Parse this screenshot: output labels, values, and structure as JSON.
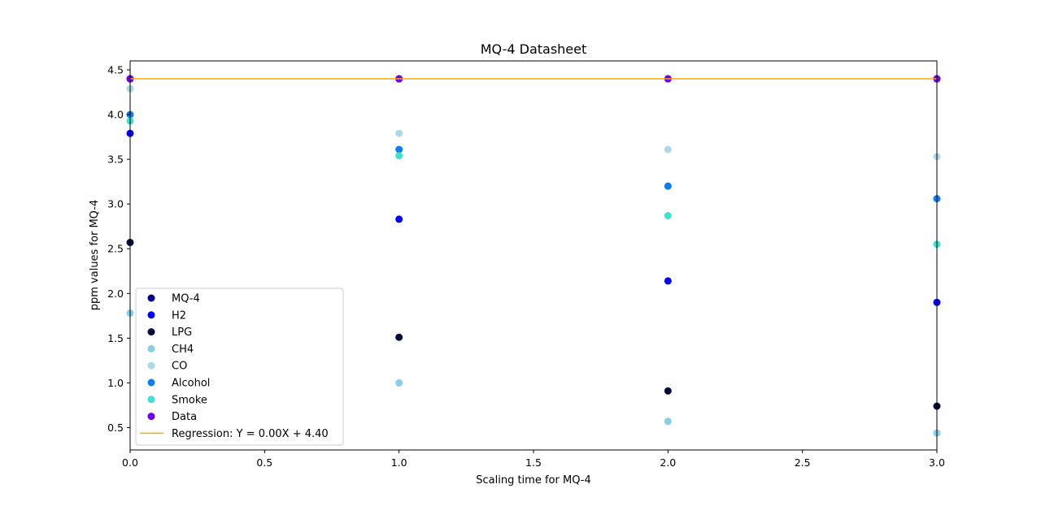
{
  "chart_data": {
    "type": "scatter",
    "title": "MQ-4 Datasheet",
    "xlabel": "Scaling time for MQ-4",
    "ylabel": "ppm values for MQ-4",
    "xlim": [
      0.0,
      3.0
    ],
    "ylim": [
      0.25,
      4.6
    ],
    "xticks": [
      "0.0",
      "0.5",
      "1.0",
      "1.5",
      "2.0",
      "2.5",
      "3.0"
    ],
    "yticks": [
      "0.5",
      "1.0",
      "1.5",
      "2.0",
      "2.5",
      "3.0",
      "3.5",
      "4.0",
      "4.5"
    ],
    "grid": false,
    "legend_position": "lower-left",
    "x": [
      0,
      1,
      2,
      3
    ],
    "series": [
      {
        "name": "MQ-4",
        "color": "#00008b",
        "values": [
          4.4,
          4.4,
          4.4,
          4.4
        ]
      },
      {
        "name": "H2",
        "color": "#0000ff",
        "values": [
          3.79,
          2.83,
          2.14,
          1.9
        ]
      },
      {
        "name": "LPG",
        "color": "#000c3a",
        "values": [
          2.57,
          1.51,
          0.91,
          0.74
        ]
      },
      {
        "name": "CH4",
        "color": "#87ceeb",
        "values": [
          1.78,
          1.0,
          0.57,
          0.44
        ]
      },
      {
        "name": "CO",
        "color": "#add8e6",
        "values": [
          4.29,
          3.79,
          3.61,
          3.53
        ]
      },
      {
        "name": "Alcohol",
        "color": "#0a7ef2",
        "values": [
          4.0,
          3.61,
          3.2,
          3.06
        ]
      },
      {
        "name": "Smoke",
        "color": "#40e0d0",
        "values": [
          3.93,
          3.54,
          2.87,
          2.55
        ]
      },
      {
        "name": "Data",
        "color": "#7000ee",
        "values": [
          4.4,
          4.4,
          4.4,
          4.4
        ]
      }
    ],
    "regression": {
      "label": "Regression: Y = 0.00X + 4.40",
      "color": "#ffa500",
      "slope": 0.0,
      "intercept": 4.4
    }
  }
}
